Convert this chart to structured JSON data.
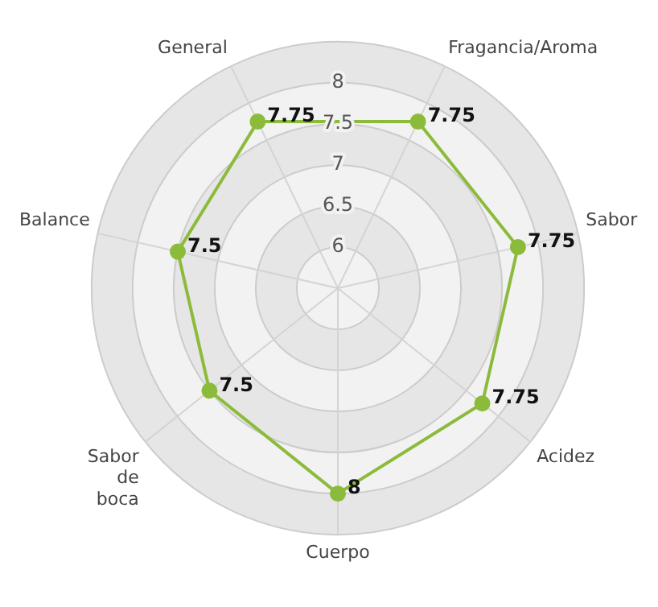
{
  "chart_data": {
    "type": "radar",
    "categories": [
      "Fragancia/Aroma",
      "Sabor",
      "Acidez",
      "Cuerpo",
      "Sabor de boca",
      "Balance",
      "General"
    ],
    "series": [
      {
        "color": "#8cbb3c",
        "values": [
          7.75,
          7.75,
          7.75,
          8,
          7.5,
          7.5,
          7.75
        ]
      }
    ],
    "ylim": [
      5.5,
      8.5
    ],
    "yticks": [
      6,
      6.5,
      7,
      7.5,
      8
    ],
    "grid": true,
    "legend": false,
    "marker": "circle",
    "data_labels": true
  }
}
